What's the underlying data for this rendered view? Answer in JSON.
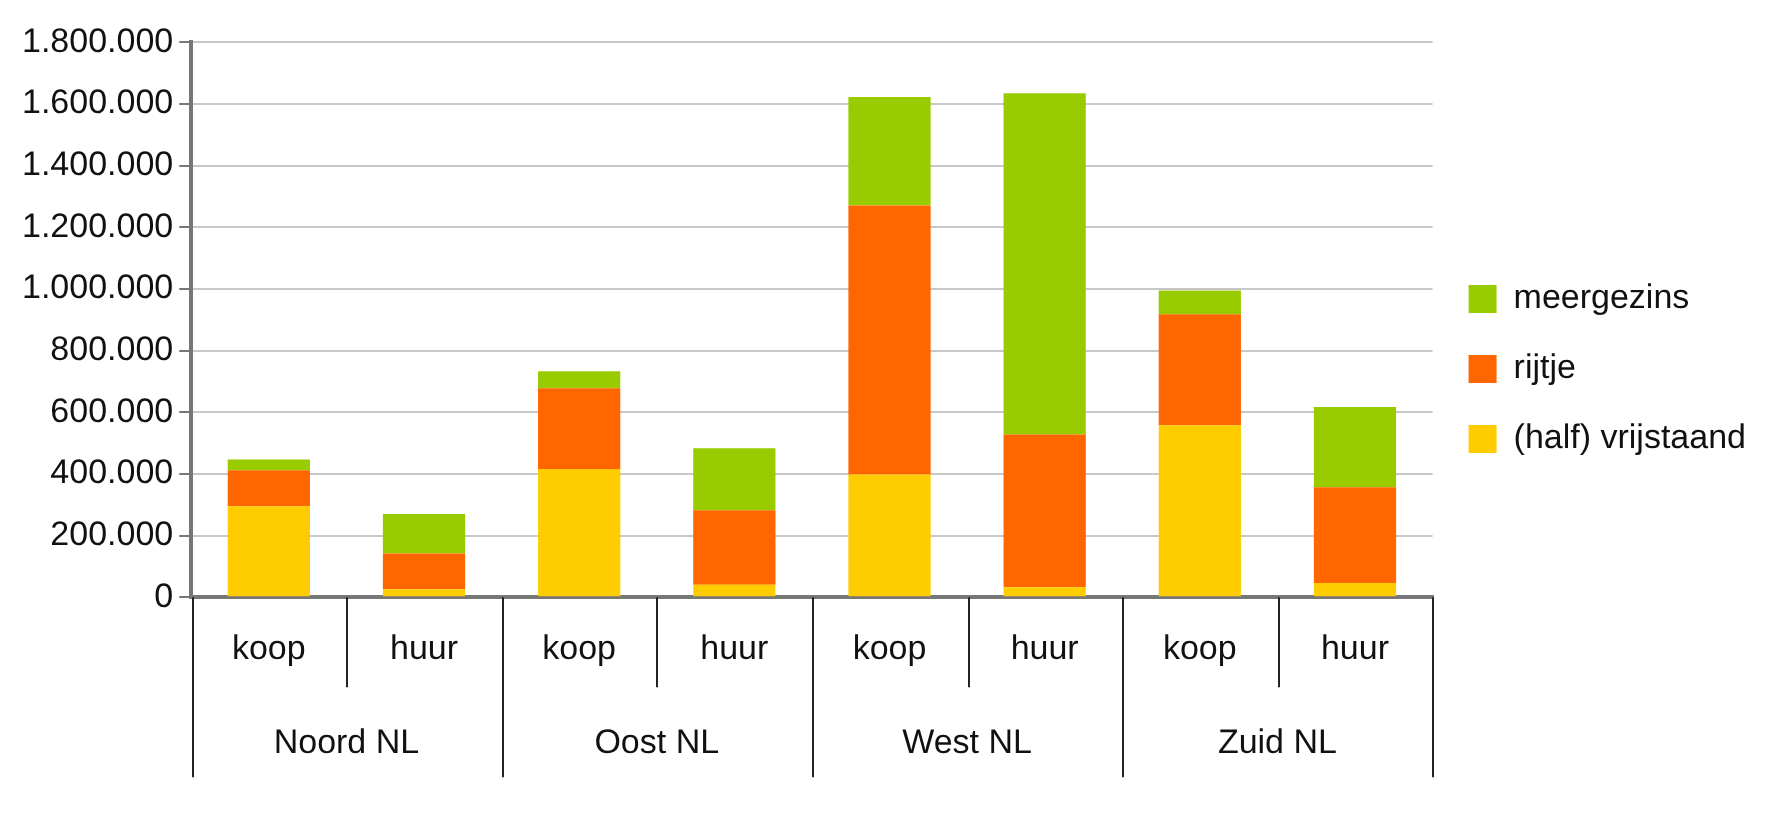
{
  "chart_data": {
    "type": "bar",
    "stacked": true,
    "categories": [
      "koop",
      "huur",
      "koop",
      "huur",
      "koop",
      "huur",
      "koop",
      "huur"
    ],
    "annotations": [
      "Noord NL",
      "Oost NL",
      "West NL",
      "Zuid NL"
    ],
    "series": [
      {
        "name": "(half) vrijstaand",
        "color": "#ffcc00",
        "values": [
          295000,
          26000,
          416000,
          40000,
          398000,
          32000,
          558000,
          46000
        ]
      },
      {
        "name": "rijtje",
        "color": "#ff6600",
        "values": [
          117000,
          116000,
          262000,
          242000,
          873000,
          496000,
          360000,
          311000
        ]
      },
      {
        "name": "meergezins",
        "color": "#99cc00",
        "values": [
          35000,
          128000,
          55000,
          201000,
          352000,
          1107000,
          77000,
          260000
        ]
      }
    ],
    "ylim": [
      0,
      1800000
    ],
    "yticks": [
      0,
      {
        "value": 200000,
        "label": "200.000"
      },
      {
        "value": 400000,
        "label": "400.000"
      },
      {
        "value": 600000,
        "label": "600.000"
      },
      {
        "value": 800000,
        "label": "800.000"
      },
      {
        "value": 1000000,
        "label": "1.000.000"
      },
      {
        "value": 1200000,
        "label": "1.200.000"
      },
      {
        "value": 1400000,
        "label": "1.400.000"
      },
      {
        "value": 1600000,
        "label": "1.600.000"
      },
      {
        "value": 1800000,
        "label": "1.800.000"
      }
    ],
    "grid": "y",
    "legend": "right"
  }
}
